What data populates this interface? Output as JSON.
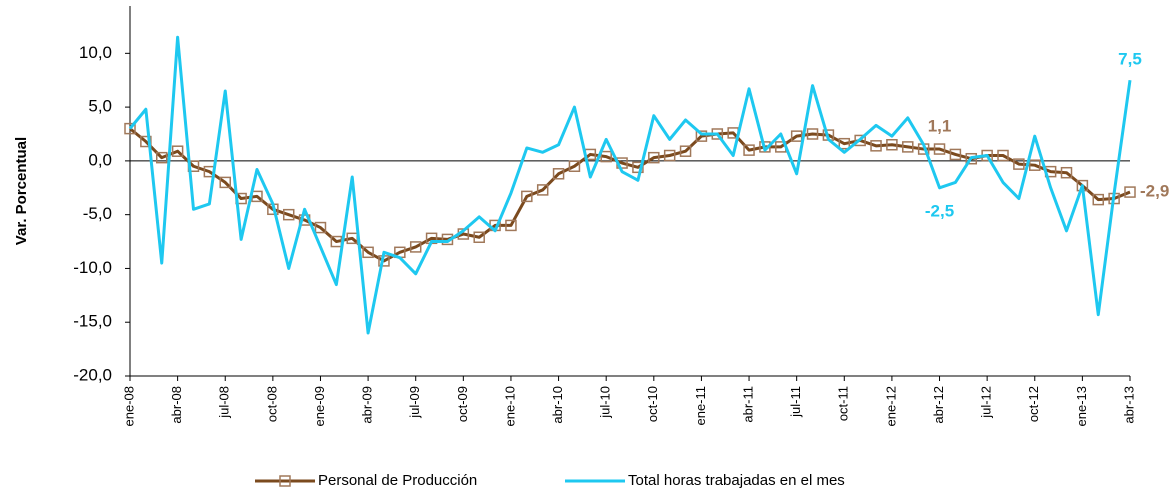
{
  "chart_data": {
    "type": "line",
    "y_label": "Var. Porcentual",
    "categories": [
      "ene-08",
      null,
      null,
      "abr-08",
      null,
      null,
      "jul-08",
      null,
      null,
      "oct-08",
      null,
      null,
      "ene-09",
      null,
      null,
      "abr-09",
      null,
      null,
      "jul-09",
      null,
      null,
      "oct-09",
      null,
      null,
      "ene-10",
      null,
      null,
      "abr-10",
      null,
      null,
      "jul-10",
      null,
      null,
      "oct-10",
      null,
      null,
      "ene-11",
      null,
      null,
      "abr-11",
      null,
      null,
      "jul-11",
      null,
      null,
      "oct-11",
      null,
      null,
      "ene-12",
      null,
      null,
      "abr-12",
      null,
      null,
      "jul-12",
      null,
      null,
      "oct-12",
      null,
      null,
      "ene-13",
      null,
      null,
      "abr-13"
    ],
    "series": [
      {
        "name": "Personal de Producción",
        "color": "#7b4a1e",
        "values": [
          3.0,
          1.8,
          0.3,
          0.9,
          -0.5,
          -1.0,
          -2.0,
          -3.5,
          -3.3,
          -4.5,
          -5.0,
          -5.5,
          -6.2,
          -7.5,
          -7.2,
          -8.5,
          -9.3,
          -8.5,
          -8.0,
          -7.2,
          -7.3,
          -6.8,
          -7.1,
          -6.0,
          -6.0,
          -3.3,
          -2.7,
          -1.2,
          -0.5,
          0.6,
          0.4,
          -0.2,
          -0.6,
          0.3,
          0.5,
          0.9,
          2.3,
          2.5,
          2.6,
          1.0,
          1.3,
          1.3,
          2.3,
          2.5,
          2.4,
          1.6,
          1.9,
          1.4,
          1.5,
          1.3,
          1.1,
          1.1,
          0.6,
          0.2,
          0.5,
          0.5,
          -0.3,
          -0.4,
          -1.0,
          -1.1,
          -2.3,
          -3.6,
          -3.5,
          -2.9
        ],
        "value_labels": [
          null,
          null,
          null,
          null,
          null,
          null,
          null,
          null,
          null,
          null,
          null,
          null,
          null,
          null,
          null,
          null,
          null,
          null,
          null,
          null,
          null,
          null,
          null,
          null,
          null,
          null,
          null,
          null,
          null,
          null,
          null,
          null,
          null,
          null,
          null,
          null,
          null,
          null,
          null,
          null,
          null,
          null,
          null,
          null,
          null,
          null,
          null,
          null,
          null,
          null,
          null,
          "1,1",
          null,
          null,
          null,
          null,
          null,
          null,
          null,
          null,
          null,
          null,
          null,
          "-2,9"
        ]
      },
      {
        "name": "Total horas trabajadas en el mes",
        "color": "#1ec8f0",
        "values": [
          3.0,
          4.8,
          -9.5,
          11.5,
          -4.5,
          -4.0,
          6.5,
          -7.3,
          -0.8,
          -4.0,
          -10.0,
          -4.5,
          -8.0,
          -11.5,
          -1.5,
          -16.0,
          -8.5,
          -9.0,
          -10.5,
          -7.5,
          -7.5,
          -6.5,
          -5.2,
          -6.5,
          -3.0,
          1.2,
          0.8,
          1.5,
          5.0,
          -1.5,
          2.0,
          -1.0,
          -1.8,
          4.2,
          2.0,
          3.8,
          2.5,
          2.5,
          0.5,
          6.7,
          1.0,
          2.5,
          -1.2,
          7.0,
          2.0,
          0.8,
          2.0,
          3.3,
          2.3,
          4.0,
          1.5,
          -2.5,
          -2.0,
          0.3,
          0.5,
          -2.0,
          -3.5,
          2.3,
          -2.5,
          -6.5,
          -2.3,
          -14.3,
          -3.0,
          7.5
        ],
        "value_labels": [
          null,
          null,
          null,
          null,
          null,
          null,
          null,
          null,
          null,
          null,
          null,
          null,
          null,
          null,
          null,
          null,
          null,
          null,
          null,
          null,
          null,
          null,
          null,
          null,
          null,
          null,
          null,
          null,
          null,
          null,
          null,
          null,
          null,
          null,
          null,
          null,
          null,
          null,
          null,
          null,
          null,
          null,
          null,
          null,
          null,
          null,
          null,
          null,
          null,
          null,
          null,
          "-2,5",
          null,
          null,
          null,
          null,
          null,
          null,
          null,
          null,
          null,
          null,
          null,
          "7,5"
        ]
      }
    ],
    "ylim": [
      -20,
      14.4
    ],
    "yticks": [
      {
        "value": -20,
        "label": "-20,0"
      },
      {
        "value": -15,
        "label": "-15,0"
      },
      {
        "value": -10,
        "label": "-10,0"
      },
      {
        "value": -5,
        "label": "-5,0"
      },
      {
        "value": 0,
        "label": "0,0"
      },
      {
        "value": 5,
        "label": "5,0"
      },
      {
        "value": 10,
        "label": "10,0"
      }
    ],
    "legend": "bottom"
  }
}
